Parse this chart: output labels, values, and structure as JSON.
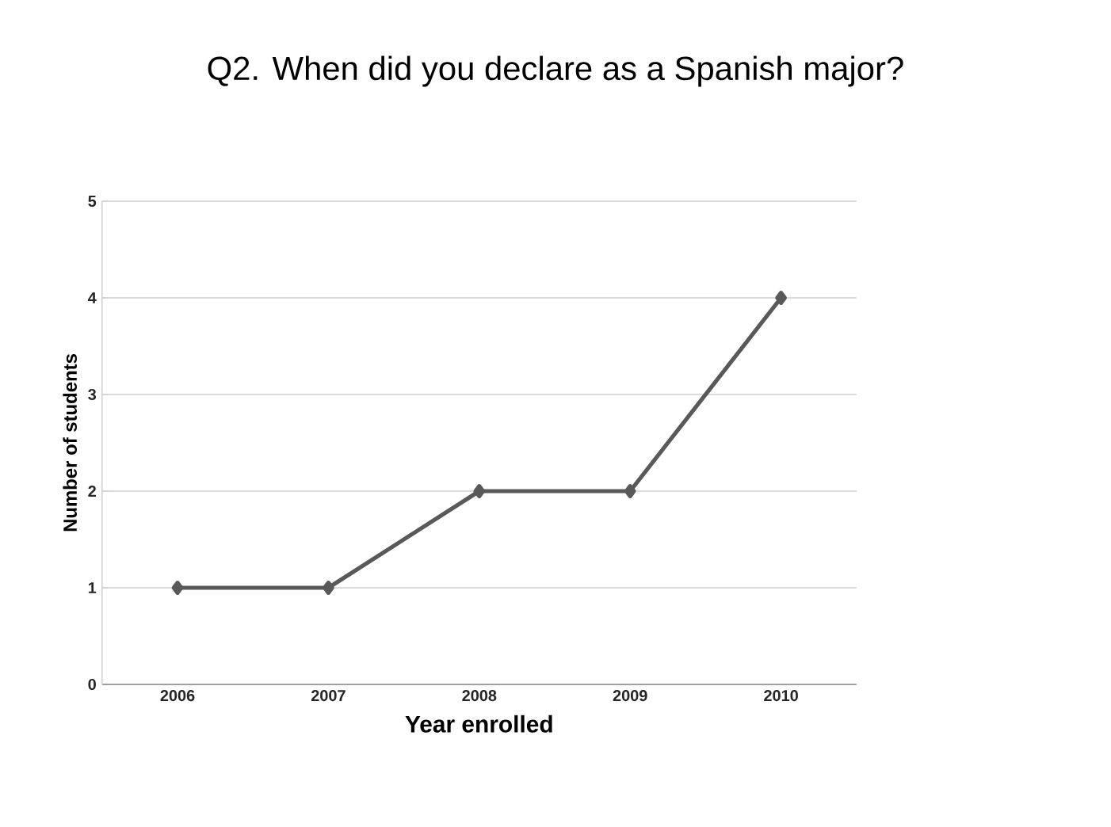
{
  "chart_data": {
    "type": "line",
    "title": "Q2. When did you declare as a Spanish major?",
    "xlabel": "Year enrolled",
    "ylabel": "Number of students",
    "categories": [
      "2006",
      "2007",
      "2008",
      "2009",
      "2010"
    ],
    "series": [
      {
        "color": "#595959",
        "values": [
          1,
          1,
          2,
          2,
          4
        ]
      }
    ],
    "ylim": [
      0,
      5
    ],
    "yticks": [
      0,
      1,
      2,
      3,
      4,
      5
    ],
    "grid": "y",
    "marker": "diamond",
    "line_style": "solid"
  }
}
